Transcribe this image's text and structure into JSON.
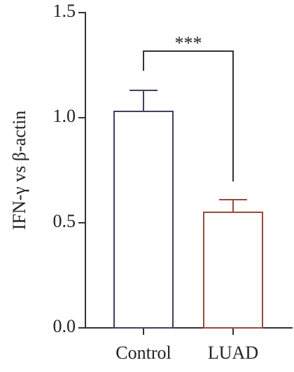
{
  "chart_data": {
    "type": "bar",
    "ylabel": "IFN-γ vs β-actin",
    "categories": [
      "Control",
      "LUAD"
    ],
    "values": [
      1.03,
      0.55
    ],
    "errors": [
      0.1,
      0.06
    ],
    "colors": [
      "#4a3d5c",
      "#9a4a3c"
    ],
    "ylim": [
      0,
      1.5
    ],
    "yticks": [
      {
        "value": 0,
        "label": "0.0"
      },
      0.5,
      {
        "value": 1,
        "label": "1.0"
      },
      1.5
    ],
    "significance": "***"
  }
}
